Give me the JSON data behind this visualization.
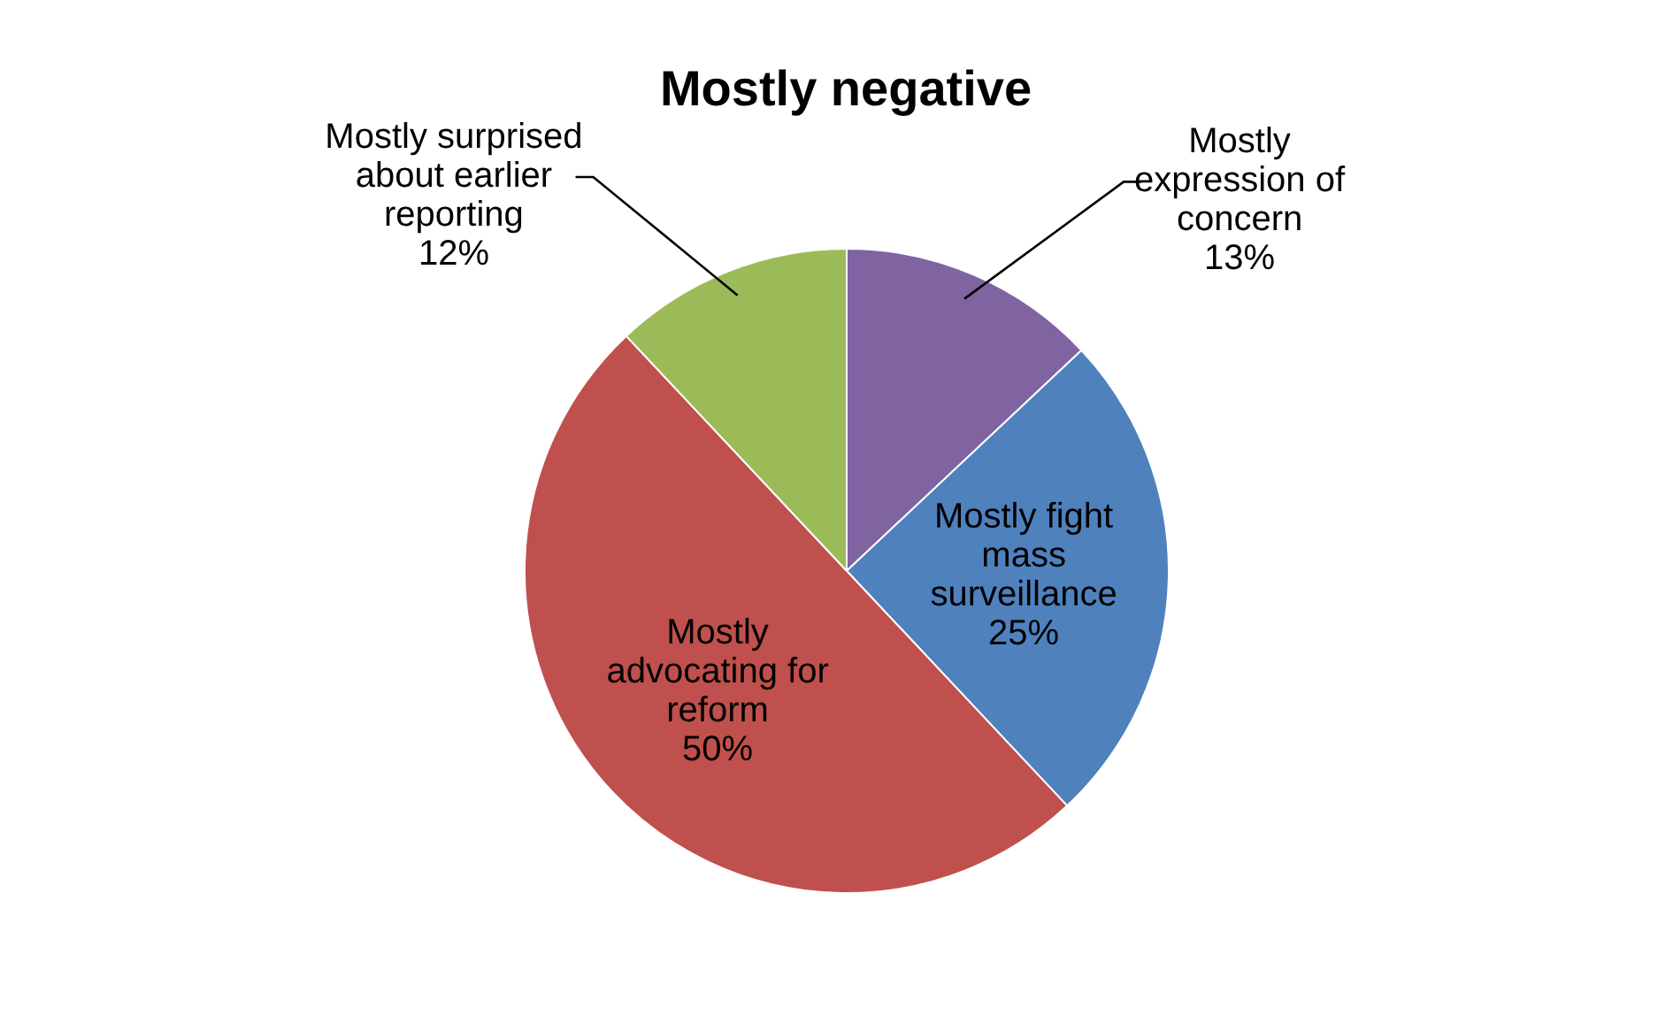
{
  "chart_data": {
    "type": "pie",
    "title": "Mostly negative",
    "categories": [
      "Mostly expression of concern",
      "Mostly fight mass surveillance",
      "Mostly advocating for reform",
      "Mostly surprised about earlier reporting"
    ],
    "values": [
      13,
      25,
      50,
      12
    ],
    "colors": [
      "#8064a2",
      "#4f81bd",
      "#c0504d",
      "#9bbb59"
    ],
    "value_labels": [
      "13%",
      "25%",
      "50%",
      "12%"
    ],
    "legend": false
  }
}
